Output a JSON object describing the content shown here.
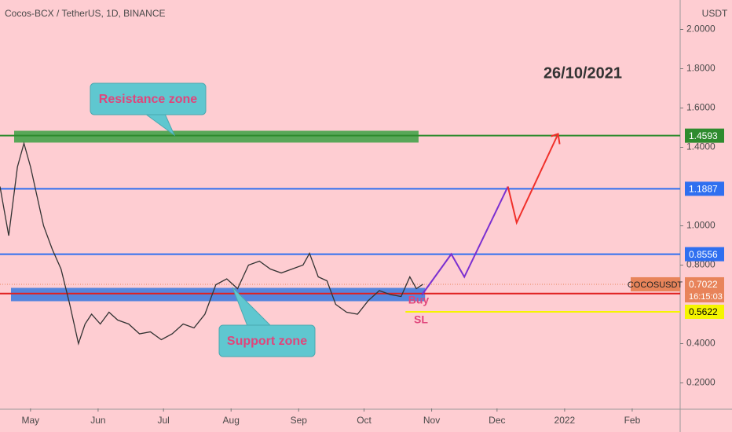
{
  "chart_data": {
    "type": "line",
    "title": "Cocos-BCX / TetherUS, 1D, BINANCE",
    "axis_unit": "USDT",
    "annotation_date": "26/10/2021",
    "symbol": "COCOSUSDT",
    "countdown": "16:15:03",
    "xlim": [
      16,
      328
    ],
    "ylim": [
      0.07,
      2.15
    ],
    "xticks": [
      {
        "value": 30,
        "label": "May"
      },
      {
        "value": 61,
        "label": "Jun"
      },
      {
        "value": 91,
        "label": "Jul"
      },
      {
        "value": 122,
        "label": "Aug"
      },
      {
        "value": 153,
        "label": "Sep"
      },
      {
        "value": 183,
        "label": "Oct"
      },
      {
        "value": 214,
        "label": "Nov"
      },
      {
        "value": 244,
        "label": "Dec"
      },
      {
        "value": 275,
        "label": "2022"
      },
      {
        "value": 306,
        "label": "Feb"
      }
    ],
    "yticks": [
      {
        "value": 2,
        "label": "2.0000"
      },
      {
        "value": 1.8,
        "label": "1.8000"
      },
      {
        "value": 1.6,
        "label": "1.6000"
      },
      {
        "value": 1.4,
        "label": "1.4000"
      },
      {
        "value": 1,
        "label": "1.0000"
      },
      {
        "value": 0.8,
        "label": "0.8000"
      },
      {
        "value": 0.4,
        "label": "0.4000"
      },
      {
        "value": 0.2,
        "label": "0.2000"
      }
    ],
    "series": [
      {
        "color": "#333333",
        "x": [
          16,
          20,
          24,
          27,
          30,
          33,
          36,
          40,
          44,
          48,
          52,
          55,
          58,
          62,
          66,
          70,
          75,
          80,
          85,
          90,
          95,
          100,
          105,
          110,
          115,
          120,
          125,
          130,
          135,
          140,
          145,
          150,
          155,
          158,
          162,
          166,
          170,
          175,
          180,
          185,
          190,
          195,
          200,
          204,
          207,
          210
        ],
        "values": [
          1.2,
          0.95,
          1.3,
          1.42,
          1.3,
          1.15,
          1.0,
          0.88,
          0.78,
          0.6,
          0.4,
          0.5,
          0.55,
          0.5,
          0.56,
          0.52,
          0.5,
          0.45,
          0.46,
          0.42,
          0.45,
          0.5,
          0.48,
          0.55,
          0.7,
          0.73,
          0.68,
          0.8,
          0.82,
          0.78,
          0.76,
          0.78,
          0.8,
          0.86,
          0.74,
          0.72,
          0.6,
          0.56,
          0.55,
          0.62,
          0.67,
          0.65,
          0.64,
          0.74,
          0.68,
          0.7022
        ]
      },
      {
        "color": "#7b2fd0",
        "x": [
          209.5,
          223,
          229,
          249
        ],
        "values": [
          0.648,
          0.856,
          0.74,
          1.2
        ]
      },
      {
        "color": "#f0302a",
        "x": [
          249,
          253,
          272
        ],
        "values": [
          1.2,
          1.016,
          1.468
        ]
      }
    ],
    "levels": [
      {
        "value": 1.4593,
        "color": "#2e8b2e"
      },
      {
        "value": 1.1887,
        "color": "#2f6ff0"
      },
      {
        "value": 0.8556,
        "color": "#2f6ff0"
      },
      {
        "value": 0.6551,
        "color": "#e02020"
      },
      {
        "value": 0.5622,
        "color": "#f5f500",
        "from": 202
      },
      {
        "value": 0.7022,
        "color": "#e8845a",
        "dotted": true
      }
    ],
    "zones": [
      {
        "label": "Resistance zone",
        "range": [
          1.424,
          1.484
        ],
        "color": "#2e9e3a",
        "to": 208
      },
      {
        "label": "Support zone",
        "range": [
          0.616,
          0.684
        ],
        "color": "#2a73e0",
        "to": 211
      }
    ],
    "labels": [
      "Buy",
      "SL"
    ]
  }
}
